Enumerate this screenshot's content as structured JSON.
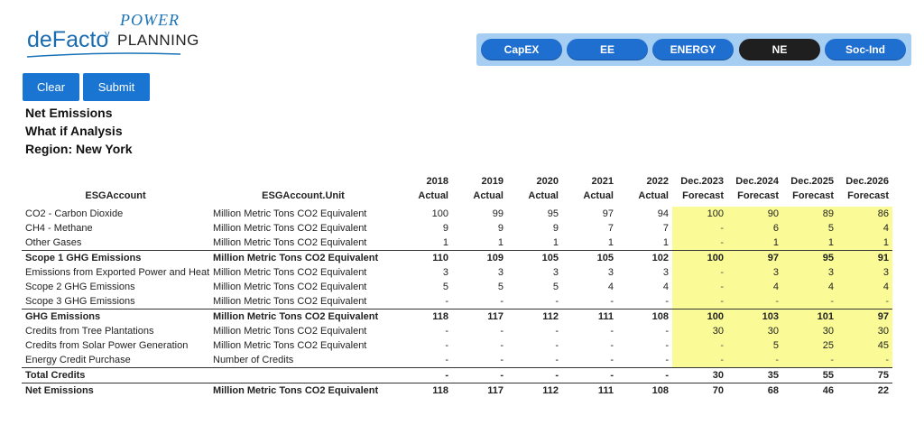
{
  "logo": {
    "brand": "deFacto",
    "power": "POWER",
    "planning": "PLANNING",
    "mark": "v"
  },
  "nav": {
    "tabs": [
      {
        "label": "CapEX",
        "active": false
      },
      {
        "label": "EE",
        "active": false
      },
      {
        "label": "ENERGY",
        "active": false
      },
      {
        "label": "NE",
        "active": true
      },
      {
        "label": "Soc-Ind",
        "active": false
      }
    ]
  },
  "buttons": {
    "clear": "Clear",
    "submit": "Submit"
  },
  "headings": {
    "line1": "Net Emissions",
    "line2": "What if Analysis",
    "line3": "Region: New York"
  },
  "colors": {
    "tab": "#1f6fd1",
    "tab_active": "#1f1f1f",
    "nav_bg": "#a6cdf2",
    "forecast_bg": "#fafa96",
    "button": "#1a75d2"
  },
  "table": {
    "col_account": "ESGAccount",
    "col_unit": "ESGAccount.Unit",
    "year_cols": [
      {
        "year": "2018",
        "kind": "Actual"
      },
      {
        "year": "2019",
        "kind": "Actual"
      },
      {
        "year": "2020",
        "kind": "Actual"
      },
      {
        "year": "2021",
        "kind": "Actual"
      },
      {
        "year": "2022",
        "kind": "Actual"
      },
      {
        "year": "Dec.2023",
        "kind": "Forecast"
      },
      {
        "year": "Dec.2024",
        "kind": "Forecast"
      },
      {
        "year": "Dec.2025",
        "kind": "Forecast"
      },
      {
        "year": "Dec.2026",
        "kind": "Forecast"
      }
    ],
    "rows": [
      {
        "account": "CO2 - Carbon Dioxide",
        "unit": "Million Metric Tons CO2 Equivalent",
        "values": [
          "100",
          "99",
          "95",
          "97",
          "94",
          "100",
          "90",
          "89",
          "86"
        ],
        "bold": false,
        "sep": false
      },
      {
        "account": "CH4 - Methane",
        "unit": "Million Metric Tons CO2 Equivalent",
        "values": [
          "9",
          "9",
          "9",
          "7",
          "7",
          "-",
          "6",
          "5",
          "4"
        ],
        "bold": false,
        "sep": false
      },
      {
        "account": "Other Gases",
        "unit": "Million Metric Tons CO2 Equivalent",
        "values": [
          "1",
          "1",
          "1",
          "1",
          "1",
          "-",
          "1",
          "1",
          "1"
        ],
        "bold": false,
        "sep": false
      },
      {
        "account": "Scope 1 GHG Emissions",
        "unit": "Million Metric Tons CO2 Equivalent",
        "values": [
          "110",
          "109",
          "105",
          "105",
          "102",
          "100",
          "97",
          "95",
          "91"
        ],
        "bold": true,
        "sep": true
      },
      {
        "account": "Emissions from Exported Power and Heat",
        "unit": "Million Metric Tons CO2 Equivalent",
        "values": [
          "3",
          "3",
          "3",
          "3",
          "3",
          "-",
          "3",
          "3",
          "3"
        ],
        "bold": false,
        "sep": false
      },
      {
        "account": "Scope 2 GHG Emissions",
        "unit": "Million Metric Tons CO2 Equivalent",
        "values": [
          "5",
          "5",
          "5",
          "4",
          "4",
          "-",
          "4",
          "4",
          "4"
        ],
        "bold": false,
        "sep": false
      },
      {
        "account": "Scope 3 GHG Emissions",
        "unit": "Million Metric Tons CO2 Equivalent",
        "values": [
          "-",
          "-",
          "-",
          "-",
          "-",
          "-",
          "-",
          "-",
          "-"
        ],
        "bold": false,
        "sep": false
      },
      {
        "account": "GHG Emissions",
        "unit": "Million Metric Tons CO2 Equivalent",
        "values": [
          "118",
          "117",
          "112",
          "111",
          "108",
          "100",
          "103",
          "101",
          "97"
        ],
        "bold": true,
        "sep": true
      },
      {
        "account": "Credits from Tree Plantations",
        "unit": "Million Metric Tons CO2 Equivalent",
        "values": [
          "-",
          "-",
          "-",
          "-",
          "-",
          "30",
          "30",
          "30",
          "30"
        ],
        "bold": false,
        "sep": false
      },
      {
        "account": "Credits from Solar Power Generation",
        "unit": "Million Metric Tons CO2 Equivalent",
        "values": [
          "-",
          "-",
          "-",
          "-",
          "-",
          "-",
          "5",
          "25",
          "45"
        ],
        "bold": false,
        "sep": false
      },
      {
        "account": "Energy Credit Purchase",
        "unit": "Number of Credits",
        "values": [
          "-",
          "-",
          "-",
          "-",
          "-",
          "-",
          "-",
          "-",
          "-"
        ],
        "bold": false,
        "sep": false
      },
      {
        "account": "Total Credits",
        "unit": "",
        "values": [
          "-",
          "-",
          "-",
          "-",
          "-",
          "30",
          "35",
          "55",
          "75"
        ],
        "bold": true,
        "sep": true
      },
      {
        "account": "Net Emissions",
        "unit": "Million Metric Tons CO2 Equivalent",
        "values": [
          "118",
          "117",
          "112",
          "111",
          "108",
          "70",
          "68",
          "46",
          "22"
        ],
        "bold": true,
        "sep": true
      }
    ]
  }
}
